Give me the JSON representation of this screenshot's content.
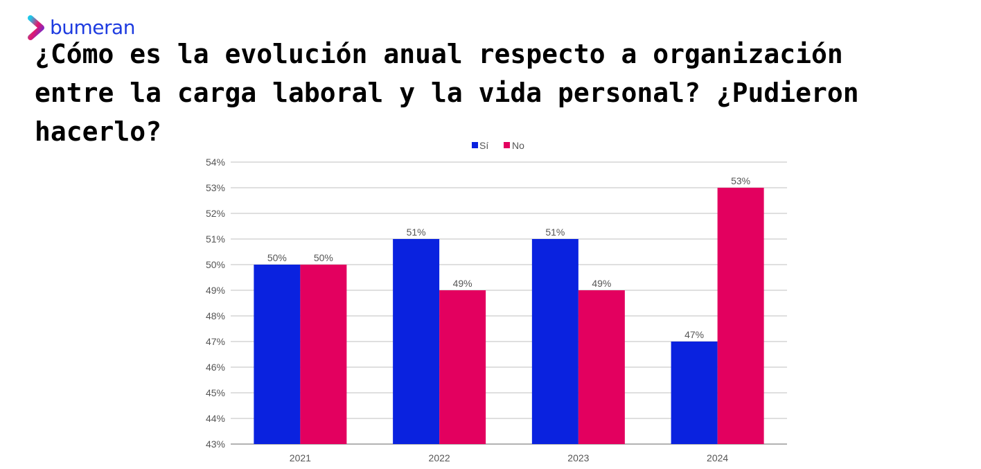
{
  "brand": {
    "name": "bumeran",
    "color": "#1d3be0"
  },
  "title": "¿Cómo es la evolución anual respecto a organización entre la carga laboral y la vida personal? ¿Pudieron hacerlo?",
  "chart_data": {
    "type": "bar",
    "categories": [
      "2021",
      "2022",
      "2023",
      "2024"
    ],
    "series": [
      {
        "name": "Sí",
        "color": "#0a22df",
        "values": [
          50,
          51,
          51,
          47
        ],
        "labels": [
          "50%",
          "51%",
          "51%",
          "47%"
        ]
      },
      {
        "name": "No",
        "color": "#e3005f",
        "values": [
          50,
          49,
          49,
          53
        ],
        "labels": [
          "50%",
          "49%",
          "49%",
          "53%"
        ]
      }
    ],
    "ylim": [
      43,
      54
    ],
    "yticks": [
      "43%",
      "44%",
      "45%",
      "46%",
      "47%",
      "48%",
      "49%",
      "50%",
      "51%",
      "52%",
      "53%",
      "54%"
    ],
    "grid": true,
    "legend": "top-center",
    "xlabel": "",
    "ylabel": ""
  }
}
